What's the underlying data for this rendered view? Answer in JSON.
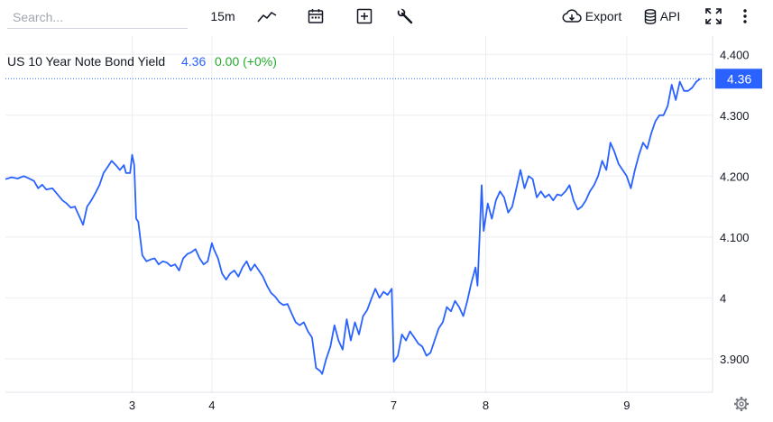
{
  "toolbar": {
    "search_placeholder": "Search...",
    "interval": "15m",
    "export_label": "Export",
    "api_label": "API",
    "icons": [
      "chart-type-icon",
      "calendar-icon",
      "add-indicator-icon",
      "wrench-icon",
      "cloud-download-icon",
      "database-icon",
      "fullscreen-icon",
      "more-vertical-icon"
    ]
  },
  "legend": {
    "name": "US 10 Year Note Bond Yield",
    "last": "4.36",
    "change": "0.00 (+0%)"
  },
  "colors": {
    "line": "#2962ff",
    "up": "#22ab2a",
    "grid": "#eceef2",
    "axis_text": "#131722",
    "last_line": "#2962ff"
  },
  "chart_data": {
    "type": "line",
    "series": [
      {
        "name": "US 10 Year Note Bond Yield",
        "points": [
          [
            0.0,
            4.195
          ],
          [
            1.5,
            4.198
          ],
          [
            3.0,
            4.196
          ],
          [
            4.5,
            4.2
          ],
          [
            5.5,
            4.197
          ],
          [
            7.0,
            4.192
          ],
          [
            8.0,
            4.18
          ],
          [
            9.0,
            4.186
          ],
          [
            10.0,
            4.178
          ],
          [
            11.5,
            4.18
          ],
          [
            13.0,
            4.168
          ],
          [
            14.0,
            4.16
          ],
          [
            15.0,
            4.155
          ],
          [
            16.0,
            4.148
          ],
          [
            17.0,
            4.15
          ],
          [
            18.0,
            4.135
          ],
          [
            19.0,
            4.12
          ],
          [
            20.0,
            4.15
          ],
          [
            21.0,
            4.16
          ],
          [
            22.0,
            4.172
          ],
          [
            23.0,
            4.185
          ],
          [
            24.0,
            4.205
          ],
          [
            25.0,
            4.215
          ],
          [
            26.0,
            4.225
          ],
          [
            27.0,
            4.218
          ],
          [
            28.0,
            4.21
          ],
          [
            29.0,
            4.218
          ],
          [
            29.5,
            4.205
          ],
          [
            30.5,
            4.205
          ],
          [
            31.0,
            4.235
          ],
          [
            31.5,
            4.218
          ],
          [
            32.0,
            4.13
          ],
          [
            32.5,
            4.125
          ],
          [
            33.5,
            4.07
          ],
          [
            34.5,
            4.06
          ],
          [
            35.5,
            4.063
          ],
          [
            36.5,
            4.065
          ],
          [
            37.5,
            4.055
          ],
          [
            38.5,
            4.06
          ],
          [
            39.5,
            4.058
          ],
          [
            40.5,
            4.052
          ],
          [
            41.5,
            4.055
          ],
          [
            42.5,
            4.045
          ],
          [
            43.5,
            4.065
          ],
          [
            44.5,
            4.072
          ],
          [
            45.5,
            4.075
          ],
          [
            46.5,
            4.08
          ],
          [
            47.5,
            4.065
          ],
          [
            48.5,
            4.055
          ],
          [
            49.5,
            4.06
          ],
          [
            50.5,
            4.09
          ],
          [
            51.0,
            4.08
          ],
          [
            52.0,
            4.065
          ],
          [
            53.0,
            4.04
          ],
          [
            54.0,
            4.03
          ],
          [
            55.0,
            4.04
          ],
          [
            56.0,
            4.045
          ],
          [
            57.0,
            4.035
          ],
          [
            58.0,
            4.05
          ],
          [
            59.0,
            4.06
          ],
          [
            60.0,
            4.045
          ],
          [
            61.0,
            4.055
          ],
          [
            62.0,
            4.045
          ],
          [
            63.0,
            4.035
          ],
          [
            64.0,
            4.02
          ],
          [
            65.0,
            4.008
          ],
          [
            66.0,
            4.002
          ],
          [
            67.0,
            3.993
          ],
          [
            68.0,
            3.988
          ],
          [
            69.0,
            3.99
          ],
          [
            70.0,
            3.975
          ],
          [
            71.0,
            3.96
          ],
          [
            72.0,
            3.955
          ],
          [
            73.0,
            3.96
          ],
          [
            74.0,
            3.945
          ],
          [
            75.0,
            3.935
          ],
          [
            76.0,
            3.885
          ],
          [
            77.0,
            3.88
          ],
          [
            77.5,
            3.875
          ],
          [
            78.5,
            3.9
          ],
          [
            79.5,
            3.92
          ],
          [
            80.5,
            3.955
          ],
          [
            81.5,
            3.93
          ],
          [
            82.5,
            3.915
          ],
          [
            83.5,
            3.965
          ],
          [
            84.5,
            3.93
          ],
          [
            85.5,
            3.96
          ],
          [
            86.5,
            3.94
          ],
          [
            87.5,
            3.97
          ],
          [
            88.5,
            3.98
          ],
          [
            89.5,
            3.998
          ],
          [
            90.5,
            4.015
          ],
          [
            91.5,
            4.0
          ],
          [
            92.5,
            4.01
          ],
          [
            93.5,
            4.005
          ],
          [
            94.5,
            4.015
          ],
          [
            95.0,
            3.895
          ],
          [
            96.0,
            3.905
          ],
          [
            97.0,
            3.94
          ],
          [
            98.0,
            3.93
          ],
          [
            99.0,
            3.945
          ],
          [
            100.0,
            3.935
          ],
          [
            101.0,
            3.925
          ],
          [
            102.0,
            3.92
          ],
          [
            103.0,
            3.905
          ],
          [
            104.0,
            3.91
          ],
          [
            105.0,
            3.93
          ],
          [
            106.0,
            3.95
          ],
          [
            107.0,
            3.96
          ],
          [
            108.0,
            3.985
          ],
          [
            109.0,
            3.978
          ],
          [
            110.0,
            3.995
          ],
          [
            111.0,
            3.985
          ],
          [
            112.0,
            3.97
          ],
          [
            113.0,
            3.995
          ],
          [
            114.0,
            4.025
          ],
          [
            115.0,
            4.05
          ],
          [
            115.5,
            4.02
          ],
          [
            116.0,
            4.1
          ],
          [
            116.5,
            4.185
          ],
          [
            117.0,
            4.11
          ],
          [
            118.0,
            4.155
          ],
          [
            119.0,
            4.13
          ],
          [
            120.0,
            4.16
          ],
          [
            121.0,
            4.175
          ],
          [
            122.0,
            4.165
          ],
          [
            123.0,
            4.14
          ],
          [
            124.0,
            4.15
          ],
          [
            125.0,
            4.18
          ],
          [
            126.0,
            4.21
          ],
          [
            127.0,
            4.18
          ],
          [
            128.0,
            4.2
          ],
          [
            129.0,
            4.195
          ],
          [
            130.0,
            4.165
          ],
          [
            131.0,
            4.175
          ],
          [
            132.0,
            4.165
          ],
          [
            133.0,
            4.17
          ],
          [
            134.0,
            4.16
          ],
          [
            135.0,
            4.17
          ],
          [
            136.0,
            4.168
          ],
          [
            137.0,
            4.175
          ],
          [
            138.0,
            4.185
          ],
          [
            139.0,
            4.16
          ],
          [
            140.0,
            4.145
          ],
          [
            141.0,
            4.15
          ],
          [
            142.0,
            4.16
          ],
          [
            143.0,
            4.175
          ],
          [
            144.0,
            4.185
          ],
          [
            145.0,
            4.2
          ],
          [
            146.0,
            4.225
          ],
          [
            147.0,
            4.21
          ],
          [
            148.0,
            4.255
          ],
          [
            149.0,
            4.24
          ],
          [
            150.0,
            4.22
          ],
          [
            151.0,
            4.21
          ],
          [
            152.0,
            4.2
          ],
          [
            153.0,
            4.18
          ],
          [
            154.0,
            4.21
          ],
          [
            155.0,
            4.235
          ],
          [
            156.0,
            4.255
          ],
          [
            157.0,
            4.245
          ],
          [
            158.0,
            4.27
          ],
          [
            159.0,
            4.29
          ],
          [
            160.0,
            4.3
          ],
          [
            161.0,
            4.3
          ],
          [
            162.0,
            4.315
          ],
          [
            163.0,
            4.35
          ],
          [
            164.0,
            4.325
          ],
          [
            165.0,
            4.355
          ],
          [
            166.0,
            4.34
          ],
          [
            167.0,
            4.34
          ],
          [
            168.0,
            4.345
          ],
          [
            169.0,
            4.355
          ],
          [
            170.0,
            4.36
          ]
        ]
      }
    ],
    "x_ticks": [
      {
        "label": "3",
        "at": 31.0
      },
      {
        "label": "4",
        "at": 50.5
      },
      {
        "label": "7",
        "at": 95.0
      },
      {
        "label": "8",
        "at": 117.5
      },
      {
        "label": "9",
        "at": 152.0
      }
    ],
    "xlim": [
      0,
      173
    ],
    "y_ticks": [
      {
        "label": "4.400",
        "value": 4.4
      },
      {
        "label": "4.300",
        "value": 4.3
      },
      {
        "label": "4.200",
        "value": 4.2
      },
      {
        "label": "4.100",
        "value": 4.1
      },
      {
        "label": "4",
        "value": 4.0
      },
      {
        "label": "3.900",
        "value": 3.9
      }
    ],
    "ylim": [
      3.845,
      4.43
    ],
    "last_value": 4.36,
    "last_label": "4.36",
    "grid": true,
    "axis_position": "right"
  }
}
